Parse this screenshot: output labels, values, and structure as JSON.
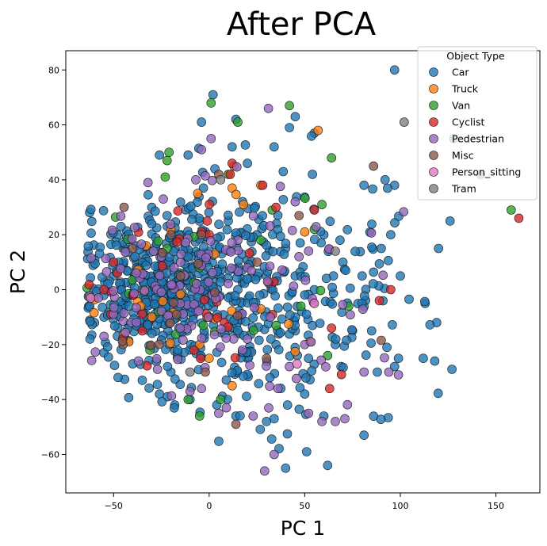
{
  "chart_data": {
    "type": "scatter",
    "title": "After PCA",
    "xlabel": "PC 1",
    "ylabel": "PC 2",
    "xlim": [
      -75,
      173
    ],
    "ylim": [
      -74,
      87
    ],
    "xticks": [
      -50,
      0,
      50,
      100,
      150
    ],
    "yticks": [
      -60,
      -40,
      -20,
      0,
      20,
      40,
      60,
      80
    ],
    "grid": false,
    "legend": {
      "title": "Object Type",
      "placement": "top-right"
    },
    "colors": {
      "Car": "#1f77b4",
      "Truck": "#ff7f0e",
      "Van": "#2ca02c",
      "Cyclist": "#d62728",
      "Pedestrian": "#9467bd",
      "Misc": "#8c564b",
      "Person_sitting": "#e377c2",
      "Tram": "#7f7f7f"
    },
    "series": [
      {
        "name": "Car",
        "count": 800,
        "points": [
          [
            97,
            80
          ],
          [
            2,
            71
          ],
          [
            -4,
            61
          ],
          [
            14,
            62
          ],
          [
            45,
            63
          ],
          [
            42,
            59
          ],
          [
            55,
            57
          ],
          [
            128,
            55
          ],
          [
            142,
            42
          ],
          [
            12,
            52
          ],
          [
            34,
            52
          ],
          [
            -26,
            49
          ],
          [
            -11,
            49
          ],
          [
            81,
            38
          ],
          [
            92,
            40
          ],
          [
            97,
            38
          ],
          [
            54,
            42
          ],
          [
            20,
            46
          ],
          [
            3,
            44
          ],
          [
            -3,
            37
          ],
          [
            -22,
            27
          ],
          [
            126,
            25
          ],
          [
            120,
            15
          ],
          [
            113,
            -5
          ],
          [
            119,
            -12
          ],
          [
            127,
            -29
          ],
          [
            118,
            -26
          ],
          [
            112,
            -25
          ],
          [
            81,
            -53
          ],
          [
            40,
            -65
          ],
          [
            51,
            -59
          ],
          [
            62,
            -64
          ],
          [
            88,
            -30
          ],
          [
            97,
            -28
          ],
          [
            99,
            -25
          ],
          [
            93,
            -21
          ],
          [
            69,
            -28
          ],
          [
            60,
            -46
          ],
          [
            50,
            -38
          ],
          [
            41,
            -42
          ],
          [
            34,
            -47
          ],
          [
            30,
            -48
          ],
          [
            14,
            -46
          ],
          [
            4,
            -42
          ],
          [
            -18,
            -42
          ],
          [
            -26,
            -38
          ],
          [
            -40,
            -27
          ],
          [
            -35,
            -33
          ],
          [
            -20,
            -30
          ],
          [
            -10,
            -40
          ],
          [
            -55,
            -10
          ],
          [
            -63,
            -6
          ],
          [
            -60,
            -12
          ],
          [
            -45,
            15
          ],
          [
            -48,
            20
          ],
          [
            -38,
            10
          ],
          [
            -30,
            30
          ],
          [
            -15,
            20
          ],
          [
            -5,
            25
          ],
          [
            10,
            25
          ],
          [
            25,
            20
          ],
          [
            40,
            15
          ],
          [
            60,
            20
          ],
          [
            70,
            10
          ],
          [
            80,
            5
          ],
          [
            85,
            -15
          ],
          [
            75,
            -15
          ],
          [
            66,
            -20
          ],
          [
            52,
            -25
          ],
          [
            45,
            -15
          ],
          [
            35,
            -20
          ],
          [
            20,
            -25
          ],
          [
            10,
            -15
          ],
          [
            0,
            -10
          ],
          [
            -20,
            -10
          ],
          [
            -30,
            -5
          ],
          [
            -45,
            -5
          ],
          [
            -50,
            5
          ],
          [
            -35,
            0
          ],
          [
            -25,
            5
          ],
          [
            -10,
            5
          ],
          [
            5,
            5
          ],
          [
            15,
            0
          ],
          [
            30,
            5
          ],
          [
            45,
            5
          ],
          [
            55,
            0
          ],
          [
            65,
            5
          ],
          [
            90,
            15
          ],
          [
            100,
            5
          ],
          [
            95,
            20
          ]
        ]
      },
      {
        "name": "Truck",
        "count": 34,
        "points": [
          [
            57,
            58
          ],
          [
            27,
            38
          ],
          [
            13,
            45
          ],
          [
            12,
            37
          ],
          [
            -6,
            35
          ],
          [
            18,
            31
          ],
          [
            3,
            13
          ],
          [
            50,
            21
          ],
          [
            -20,
            22
          ],
          [
            -33,
            16
          ],
          [
            0,
            -25
          ],
          [
            -5,
            -20
          ],
          [
            -30,
            -10
          ],
          [
            -42,
            -19
          ],
          [
            12,
            -35
          ],
          [
            27,
            -7
          ]
        ]
      },
      {
        "name": "Van",
        "count": 40,
        "points": [
          [
            1,
            68
          ],
          [
            15,
            61
          ],
          [
            42,
            67
          ],
          [
            -21,
            50
          ],
          [
            -22,
            47
          ],
          [
            -23,
            41
          ],
          [
            64,
            48
          ],
          [
            59,
            31
          ],
          [
            55,
            22
          ],
          [
            27,
            18
          ],
          [
            33,
            29
          ],
          [
            10,
            42
          ],
          [
            158,
            29
          ],
          [
            62,
            -24
          ],
          [
            73,
            -6
          ],
          [
            48,
            -6
          ],
          [
            35,
            -13
          ],
          [
            6,
            -40
          ],
          [
            -11,
            -40
          ],
          [
            -5,
            -46
          ],
          [
            -31,
            -22
          ],
          [
            -3,
            -13
          ],
          [
            -22,
            15
          ],
          [
            -5,
            8
          ]
        ]
      },
      {
        "name": "Cyclist",
        "count": 45,
        "points": [
          [
            162,
            26
          ],
          [
            89,
            -4
          ],
          [
            95,
            0
          ],
          [
            63,
            -36
          ],
          [
            64,
            -14
          ],
          [
            55,
            29
          ],
          [
            35,
            30
          ],
          [
            28,
            38
          ],
          [
            12,
            46
          ],
          [
            11,
            42
          ],
          [
            -4,
            21
          ],
          [
            -1,
            25
          ],
          [
            -50,
            10
          ],
          [
            -48,
            6
          ],
          [
            -55,
            0
          ],
          [
            -8,
            -22
          ],
          [
            -40,
            -2
          ],
          [
            8,
            -12
          ],
          [
            -35,
            -15
          ],
          [
            0,
            20
          ]
        ]
      },
      {
        "name": "Pedestrian",
        "count": 160,
        "points": [
          [
            1,
            55
          ],
          [
            -4,
            51
          ],
          [
            -7,
            40
          ],
          [
            -32,
            39
          ],
          [
            -24,
            33
          ],
          [
            31,
            66
          ],
          [
            34,
            -60
          ],
          [
            29,
            -66
          ],
          [
            52,
            -45
          ],
          [
            59,
            -48
          ],
          [
            66,
            -48
          ],
          [
            71,
            -47
          ],
          [
            81,
            -30
          ],
          [
            94,
            -30
          ],
          [
            99,
            -31
          ],
          [
            36,
            -36
          ],
          [
            23,
            -46
          ],
          [
            9,
            -43
          ],
          [
            5,
            -45
          ],
          [
            -4,
            -36
          ],
          [
            -10,
            -37
          ],
          [
            -27,
            -29
          ],
          [
            -37,
            -26
          ],
          [
            -55,
            -17
          ],
          [
            -58,
            -3
          ],
          [
            45,
            32
          ],
          [
            47,
            12
          ],
          [
            15,
            18
          ],
          [
            20,
            8
          ],
          [
            -15,
            10
          ],
          [
            -25,
            12
          ],
          [
            32,
            -10
          ],
          [
            50,
            -20
          ],
          [
            42,
            -28
          ],
          [
            20,
            -18
          ]
        ]
      },
      {
        "name": "Misc",
        "count": 24,
        "points": [
          [
            86,
            45
          ],
          [
            47,
            27
          ],
          [
            5,
            42
          ],
          [
            -4,
            20
          ],
          [
            -20,
            20
          ],
          [
            -40,
            15
          ],
          [
            14,
            -49
          ],
          [
            -2,
            -30
          ],
          [
            30,
            -25
          ],
          [
            25,
            10
          ],
          [
            -45,
            -20
          ],
          [
            -15,
            5
          ]
        ]
      },
      {
        "name": "Person_sitting",
        "count": 3,
        "points": [
          [
            -62,
            -3
          ],
          [
            46,
            -27
          ],
          [
            55,
            -5
          ]
        ]
      },
      {
        "name": "Tram",
        "count": 4,
        "points": [
          [
            102,
            61
          ],
          [
            6,
            40
          ],
          [
            66,
            14
          ],
          [
            -10,
            -30
          ]
        ]
      }
    ]
  }
}
